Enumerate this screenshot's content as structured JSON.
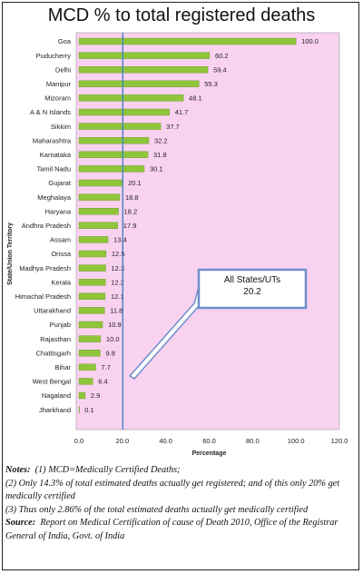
{
  "title": "MCD % to total registered deaths",
  "chart_data": {
    "type": "bar",
    "orientation": "horizontal",
    "categories": [
      "Goa",
      "Puducherry",
      "Delhi",
      "Manipur",
      "Mizoram",
      "A & N Islands",
      "Sikkim",
      "Maharashtra",
      "Karnataka",
      "Tamil Nadu",
      "Gujarat",
      "Meghalaya",
      "Haryana",
      "Andhra Pradesh",
      "Assam",
      "Orissa",
      "Madhya Pradesh",
      "Kerala",
      "Himachal Pradesh",
      "Uttarakhand",
      "Punjab",
      "Rajasthan",
      "Chattisgarh",
      "Bihar",
      "West Bengal",
      "Nagaland",
      "Jharkhand"
    ],
    "values": [
      100.0,
      60.2,
      59.4,
      55.3,
      48.1,
      41.7,
      37.7,
      32.2,
      31.8,
      30.1,
      20.1,
      18.8,
      18.2,
      17.9,
      13.4,
      12.5,
      12.3,
      12.2,
      12.1,
      11.8,
      10.9,
      10.0,
      9.8,
      7.7,
      6.4,
      2.9,
      0.1
    ],
    "value_labels": [
      "100.0",
      "60.2",
      "59.4",
      "55.3",
      "48.1",
      "41.7",
      "37.7",
      "32.2",
      "31.8",
      "30.1",
      "20.1",
      "18.8",
      "18.2",
      "17.9",
      "13.4",
      "12.5",
      "12.3",
      "12.2",
      "12.1",
      "11.8",
      "10.9",
      "10.0",
      "9.8",
      "7.7",
      "6.4",
      "2.9",
      "0.1"
    ],
    "xlabel": "Percentage",
    "ylabel": "State/Union Territory",
    "xlim": [
      0,
      120
    ],
    "xticks": [
      "0.0",
      "20.0",
      "40.0",
      "60.0",
      "80.0",
      "100.0",
      "120.0"
    ],
    "reference_line": {
      "value": 20.2,
      "label": "All States/UTs",
      "value_label": "20.2"
    },
    "plot_background": "#f9d2f0",
    "bar_color": "#8fc53a",
    "reference_line_color": "#4a86c5",
    "grid": false
  },
  "notes": {
    "line1_label": "Notes:",
    "line1_text": "(1) MCD=Medically Certified Deaths;",
    "line2": "(2) Only 14.3% of total estimated deaths actually get registered; and of this only 20% get medically certified",
    "line3": "(3) Thus only 2.86% of the total estimated deaths actually get medically certified",
    "source_label": "Source:",
    "source_text": "Report on Medical Certification of cause of Death 2010, Office of the Registrar General of India, Govt. of India"
  }
}
